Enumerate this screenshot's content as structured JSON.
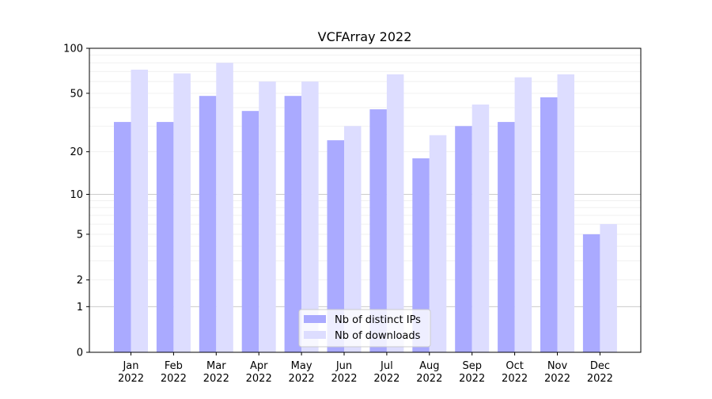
{
  "chart_data": {
    "type": "bar",
    "title": "VCFArray 2022",
    "categories": [
      [
        "Jan",
        "2022"
      ],
      [
        "Feb",
        "2022"
      ],
      [
        "Mar",
        "2022"
      ],
      [
        "Apr",
        "2022"
      ],
      [
        "May",
        "2022"
      ],
      [
        "Jun",
        "2022"
      ],
      [
        "Jul",
        "2022"
      ],
      [
        "Aug",
        "2022"
      ],
      [
        "Sep",
        "2022"
      ],
      [
        "Oct",
        "2022"
      ],
      [
        "Nov",
        "2022"
      ],
      [
        "Dec",
        "2022"
      ]
    ],
    "series": [
      {
        "name": "Nb of distinct IPs",
        "color": "#aaaaff",
        "values": [
          32,
          32,
          48,
          38,
          48,
          24,
          39,
          18,
          30,
          32,
          47,
          5
        ]
      },
      {
        "name": "Nb of downloads",
        "color": "#ddddff",
        "values": [
          72,
          68,
          80,
          60,
          60,
          30,
          67,
          26,
          42,
          64,
          67,
          6
        ]
      }
    ],
    "y_scale": "log1p",
    "ylim": [
      0,
      100
    ],
    "y_ticks": [
      0,
      1,
      2,
      5,
      10,
      20,
      50,
      100
    ],
    "xlabel": "",
    "ylabel": "",
    "grid": true,
    "legend_position": "bottom-center"
  }
}
